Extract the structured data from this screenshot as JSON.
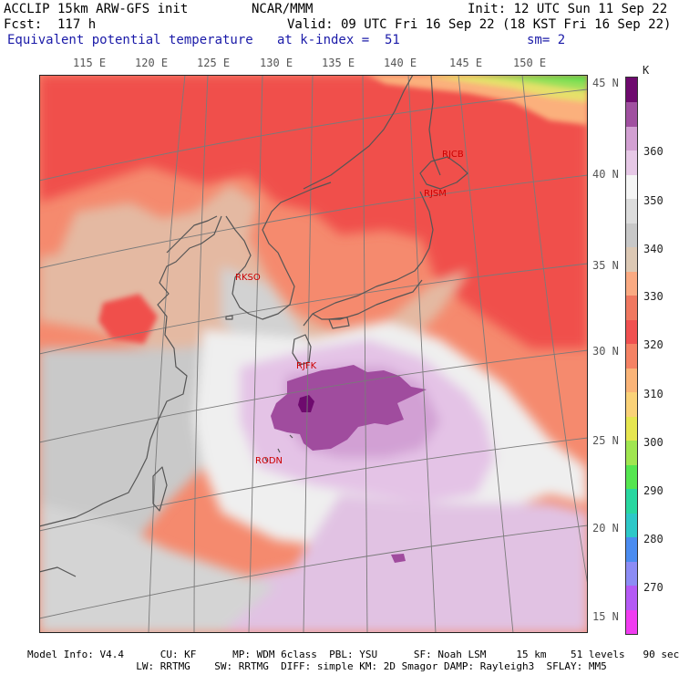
{
  "header": {
    "line1_left": "ACCLIP 15km ARW-GFS init",
    "line1_mid": "NCAR/MMM",
    "line1_right": "Init: 12 UTC Sun 11 Sep 22",
    "line2_left": "Fcst:  117 h",
    "line2_right": "Valid: 09 UTC Fri 16 Sep 22 (18 KST Fri 16 Sep 22)",
    "line3_left": "Equivalent potential temperature",
    "line3_mid": "at k-index =  51",
    "line3_right": "sm= 2"
  },
  "map": {
    "lon_labels": [
      "115 E",
      "120 E",
      "125 E",
      "130 E",
      "135 E",
      "140 E",
      "145 E",
      "150 E"
    ],
    "lat_labels": [
      "45 N",
      "40 N",
      "35 N",
      "30 N",
      "25 N",
      "20 N",
      "15 N"
    ],
    "stations": [
      {
        "id": "RJCB"
      },
      {
        "id": "RJSM"
      },
      {
        "id": "RKSO"
      },
      {
        "id": "RJFK"
      },
      {
        "id": "RODN"
      }
    ]
  },
  "colorbar": {
    "unit": "K",
    "tick_labels": [
      "360",
      "350",
      "340",
      "330",
      "320",
      "310",
      "300",
      "290",
      "280",
      "270"
    ],
    "colors": [
      "#f03cf0",
      "#b45af5",
      "#8c8cf5",
      "#4b8cf0",
      "#2dc8c8",
      "#28d7a0",
      "#55e650",
      "#a0e650",
      "#e6e650",
      "#fad278",
      "#fab478",
      "#f58264",
      "#f05050",
      "#f07860",
      "#faaa82",
      "#dcc8b4",
      "#c8c8c8",
      "#dcdcdc",
      "#f5f5f5",
      "#e6c8e6",
      "#d2a0d2",
      "#a050a0",
      "#6e0a6e"
    ]
  },
  "footer": {
    "line1": "Model Info: V4.4      CU: KF      MP: WDM 6class  PBL: YSU      SF: Noah LSM     15 km    51 levels   90 sec",
    "line2": "                  LW: RRTMG    SW: RRTMG  DIFF: simple KM: 2D Smagor DAMP: Rayleigh3  SFLAY: MM5"
  }
}
